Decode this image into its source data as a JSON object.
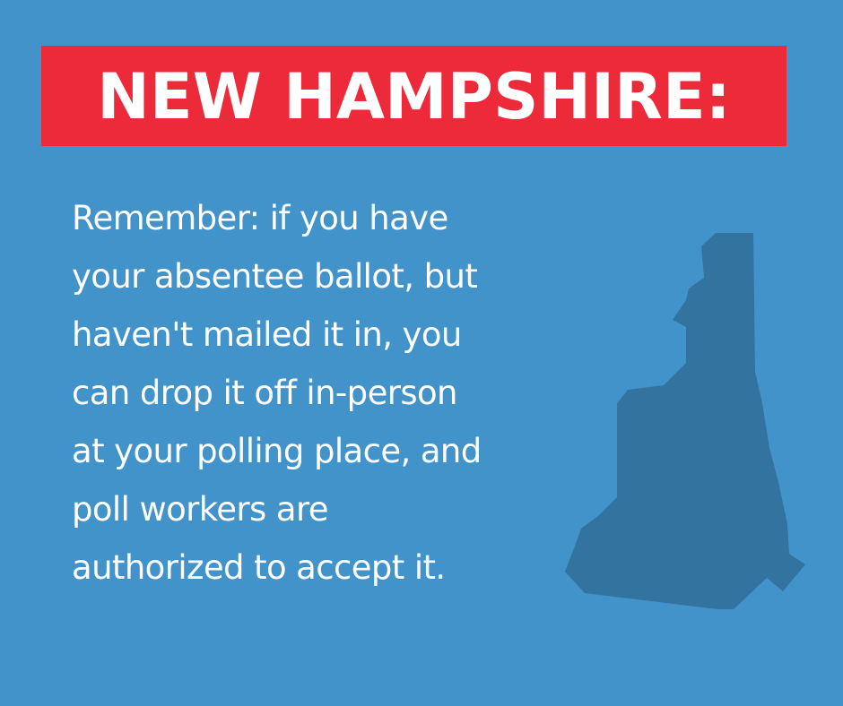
{
  "title": "NEW HAMPSHIRE:",
  "message_lines": [
    "Remember: if you have",
    "your absentee ballot, but",
    "haven't mailed it in, you",
    "can drop it off in-person",
    "at your polling place, and",
    "poll workers are",
    "authorized to accept it."
  ],
  "colors": {
    "background": "#4393cb",
    "banner": "#ec2a3a",
    "text": "#ffffff",
    "state_shape": "#3373a0"
  },
  "icons": {
    "state_shape": "new-hampshire-silhouette-icon"
  }
}
